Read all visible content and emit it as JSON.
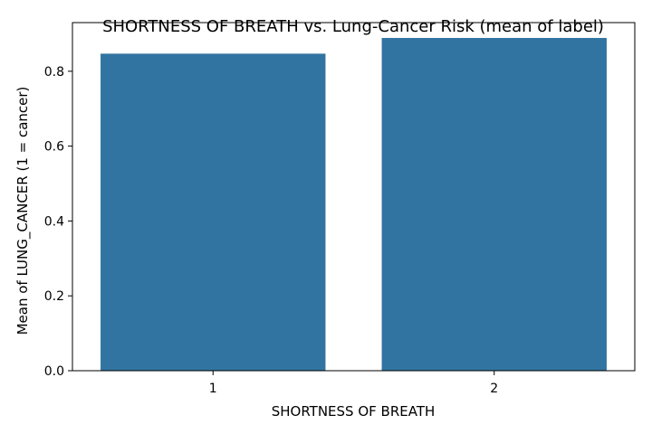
{
  "chart_data": {
    "type": "bar",
    "title": "SHORTNESS OF BREATH vs. Lung-Cancer Risk (mean of label)",
    "xlabel": "SHORTNESS OF BREATH",
    "ylabel": "Mean of LUNG_CANCER (1 = cancer)",
    "categories": [
      "1",
      "2"
    ],
    "values": [
      0.847,
      0.889
    ],
    "ylim": [
      0,
      0.93
    ],
    "yticks": [
      0.0,
      0.2,
      0.4,
      0.6,
      0.8
    ],
    "ytick_labels": [
      "0.0",
      "0.2",
      "0.4",
      "0.6",
      "0.8"
    ],
    "grid": false,
    "bar_color": "#3274a1"
  }
}
